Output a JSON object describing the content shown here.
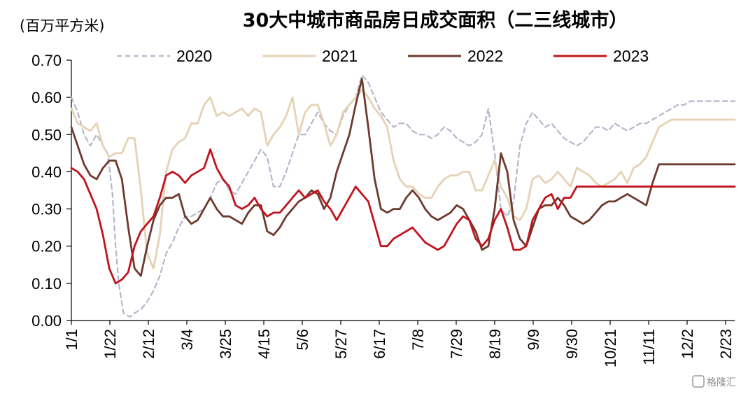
{
  "chart_data": {
    "type": "line",
    "title": "30大中城市商品房日成交面积（二三线城市）",
    "unit_label": "(百万平方米)",
    "ylim": [
      0,
      0.7
    ],
    "y_ticks": [
      "0.00",
      "0.10",
      "0.20",
      "0.30",
      "0.40",
      "0.50",
      "0.60",
      "0.70"
    ],
    "x_ticks": [
      "1/1",
      "1/22",
      "2/12",
      "3/4",
      "3/25",
      "4/15",
      "5/6",
      "5/27",
      "6/17",
      "7/8",
      "7/29",
      "8/19",
      "9/9",
      "9/30",
      "10/21",
      "11/11",
      "12/2",
      "2/23"
    ],
    "grid": false,
    "legend_position": "top",
    "series": [
      {
        "name": "2020",
        "color": "#b4b8cc",
        "dash": "7,5",
        "x": [
          0,
          4,
          8,
          12,
          16,
          20,
          23,
          26,
          28,
          30,
          33,
          37,
          40,
          44,
          48,
          52,
          56,
          60,
          64,
          68,
          72,
          76,
          80,
          84,
          88,
          92,
          96,
          100,
          104,
          108,
          112,
          116,
          120,
          124,
          128,
          132,
          136,
          140,
          144,
          148,
          152,
          156,
          160,
          164,
          168,
          172,
          176,
          180,
          184,
          188,
          192,
          196,
          200,
          204,
          208,
          212,
          216,
          220,
          224,
          228,
          232,
          236,
          240,
          244,
          248,
          252,
          256,
          260,
          264,
          268,
          272,
          276,
          280,
          284,
          288,
          292,
          296,
          300,
          304,
          308,
          312,
          316,
          320,
          324,
          328,
          332,
          336,
          340,
          344,
          348,
          352,
          356,
          360,
          364,
          368,
          372,
          376,
          380,
          384,
          388,
          392,
          396,
          400,
          404,
          408,
          412,
          416,
          420
        ],
        "y": [
          0.6,
          0.56,
          0.5,
          0.47,
          0.5,
          0.47,
          0.45,
          0.34,
          0.2,
          0.1,
          0.02,
          0.01,
          0.02,
          0.03,
          0.05,
          0.08,
          0.12,
          0.18,
          0.21,
          0.25,
          0.28,
          0.28,
          0.29,
          0.3,
          0.33,
          0.37,
          0.38,
          0.35,
          0.34,
          0.37,
          0.4,
          0.43,
          0.46,
          0.44,
          0.36,
          0.36,
          0.4,
          0.45,
          0.5,
          0.5,
          0.53,
          0.56,
          0.53,
          0.51,
          0.5,
          0.55,
          0.58,
          0.6,
          0.66,
          0.64,
          0.6,
          0.56,
          0.54,
          0.52,
          0.53,
          0.53,
          0.51,
          0.5,
          0.5,
          0.49,
          0.5,
          0.52,
          0.51,
          0.49,
          0.48,
          0.47,
          0.48,
          0.5,
          0.57,
          0.45,
          0.3,
          0.28,
          0.32,
          0.47,
          0.53,
          0.56,
          0.54,
          0.52,
          0.53,
          0.51,
          0.49,
          0.48,
          0.47,
          0.48,
          0.5,
          0.52,
          0.52,
          0.51,
          0.53,
          0.52,
          0.51,
          0.52,
          0.53,
          0.53,
          0.54,
          0.55,
          0.56,
          0.57,
          0.58,
          0.58,
          0.59,
          0.59,
          0.59,
          0.59,
          0.59,
          0.59,
          0.59,
          0.59
        ],
        "points": 85
      },
      {
        "name": "2021",
        "color": "#e6d2b4",
        "dash": "",
        "x": [
          0,
          4,
          8,
          12,
          16,
          20,
          24,
          28,
          32,
          36,
          40,
          44,
          48,
          52,
          56,
          60,
          64,
          68,
          72,
          76,
          80,
          84,
          88,
          92,
          96,
          100,
          104,
          108,
          112,
          116,
          120,
          124,
          128,
          132,
          136,
          140,
          144,
          148,
          152,
          156,
          160,
          164,
          168,
          172,
          176,
          180,
          184,
          188,
          192,
          196,
          200,
          204,
          208,
          212,
          216,
          220,
          224,
          228,
          232,
          236,
          240,
          244,
          248,
          252,
          256,
          260,
          264,
          268,
          272,
          276,
          280,
          284,
          288,
          292,
          296,
          300,
          304,
          308,
          312,
          316,
          320,
          324,
          328,
          332,
          336,
          340,
          344,
          348,
          352,
          356,
          360,
          364,
          368,
          372,
          376,
          380,
          384,
          388,
          392,
          396,
          400,
          404,
          408,
          412,
          416,
          420
        ],
        "y": [
          0.57,
          0.53,
          0.52,
          0.51,
          0.53,
          0.47,
          0.44,
          0.45,
          0.45,
          0.49,
          0.49,
          0.35,
          0.18,
          0.14,
          0.23,
          0.4,
          0.46,
          0.48,
          0.49,
          0.53,
          0.53,
          0.58,
          0.6,
          0.55,
          0.56,
          0.55,
          0.56,
          0.57,
          0.55,
          0.57,
          0.56,
          0.47,
          0.5,
          0.52,
          0.55,
          0.6,
          0.5,
          0.56,
          0.58,
          0.58,
          0.53,
          0.47,
          0.5,
          0.56,
          0.58,
          0.6,
          0.62,
          0.6,
          0.57,
          0.55,
          0.52,
          0.43,
          0.38,
          0.36,
          0.36,
          0.34,
          0.33,
          0.33,
          0.36,
          0.38,
          0.39,
          0.39,
          0.4,
          0.4,
          0.35,
          0.35,
          0.39,
          0.43,
          0.36,
          0.33,
          0.28,
          0.27,
          0.3,
          0.38,
          0.39,
          0.37,
          0.38,
          0.4,
          0.38,
          0.36,
          0.41,
          0.4,
          0.39,
          0.37,
          0.36,
          0.37,
          0.38,
          0.4,
          0.37,
          0.41,
          0.42,
          0.44,
          0.48,
          0.52,
          0.53,
          0.54,
          0.54,
          0.54,
          0.54,
          0.54,
          0.54,
          0.54,
          0.54,
          0.54,
          0.54,
          0.54
        ],
        "points": 85
      },
      {
        "name": "2022",
        "color": "#6e3a2e",
        "dash": "",
        "x": [
          0,
          4,
          8,
          12,
          16,
          20,
          24,
          28,
          32,
          36,
          40,
          44,
          48,
          52,
          56,
          60,
          64,
          68,
          72,
          76,
          80,
          84,
          88,
          92,
          96,
          100,
          104,
          108,
          112,
          116,
          120,
          124,
          128,
          132,
          136,
          140,
          144,
          148,
          152,
          156,
          160,
          164,
          168,
          172,
          176,
          180,
          184,
          188,
          192,
          196,
          200,
          204,
          208,
          212,
          216,
          220,
          224,
          228,
          232,
          236,
          240,
          244,
          248,
          252,
          256,
          260,
          264,
          268,
          272,
          276,
          280,
          284,
          288,
          292,
          296,
          300,
          304,
          308,
          312,
          316,
          320,
          324,
          328,
          332,
          336,
          340,
          344,
          348,
          352,
          356,
          360,
          364,
          368,
          372,
          376,
          380,
          384,
          388,
          392,
          396,
          400,
          404,
          408,
          412,
          416,
          420
        ],
        "y": [
          0.52,
          0.47,
          0.42,
          0.39,
          0.38,
          0.41,
          0.43,
          0.43,
          0.38,
          0.25,
          0.14,
          0.12,
          0.2,
          0.27,
          0.31,
          0.33,
          0.33,
          0.34,
          0.28,
          0.26,
          0.27,
          0.3,
          0.33,
          0.3,
          0.28,
          0.28,
          0.27,
          0.26,
          0.29,
          0.31,
          0.31,
          0.24,
          0.23,
          0.25,
          0.28,
          0.3,
          0.32,
          0.33,
          0.35,
          0.34,
          0.3,
          0.33,
          0.4,
          0.45,
          0.5,
          0.58,
          0.65,
          0.52,
          0.38,
          0.3,
          0.29,
          0.3,
          0.3,
          0.33,
          0.35,
          0.33,
          0.3,
          0.28,
          0.27,
          0.28,
          0.29,
          0.31,
          0.3,
          0.27,
          0.24,
          0.19,
          0.2,
          0.3,
          0.45,
          0.4,
          0.27,
          0.22,
          0.2,
          0.25,
          0.3,
          0.31,
          0.31,
          0.33,
          0.31,
          0.28,
          0.27,
          0.26,
          0.27,
          0.29,
          0.31,
          0.32,
          0.32,
          0.33,
          0.34,
          0.33,
          0.32,
          0.31,
          0.37,
          0.42,
          0.42,
          0.42,
          0.42,
          0.42,
          0.42,
          0.42,
          0.42,
          0.42,
          0.42,
          0.42,
          0.42,
          0.42
        ],
        "points": 85
      },
      {
        "name": "2023",
        "color": "#c0141e",
        "dash": "",
        "x": [
          0,
          4,
          8,
          12,
          16,
          20,
          24,
          28,
          32,
          36,
          40,
          44,
          48,
          52,
          56,
          60,
          64,
          68,
          72,
          76,
          80,
          84,
          88,
          92,
          96,
          100,
          104,
          108,
          112,
          116,
          120,
          124,
          128,
          132,
          136,
          140,
          144,
          148,
          152,
          156,
          160,
          164,
          168,
          172,
          176,
          180,
          184,
          188,
          192,
          196,
          200,
          204,
          208,
          212,
          216,
          220,
          224,
          228,
          232,
          236,
          240,
          244,
          248,
          252,
          256,
          260,
          264,
          268,
          272,
          276,
          280,
          284,
          288,
          292,
          296,
          300,
          304,
          308,
          312,
          316,
          320,
          324,
          328,
          332,
          336,
          340,
          344,
          348,
          352,
          356,
          360,
          364,
          368,
          372,
          376,
          380,
          384,
          388,
          392,
          396,
          400,
          404,
          408,
          412,
          416,
          420
        ],
        "y": [
          0.41,
          0.4,
          0.38,
          0.34,
          0.3,
          0.23,
          0.14,
          0.1,
          0.11,
          0.13,
          0.2,
          0.24,
          0.26,
          0.28,
          0.33,
          0.39,
          0.4,
          0.39,
          0.37,
          0.39,
          0.4,
          0.41,
          0.46,
          0.41,
          0.38,
          0.36,
          0.31,
          0.3,
          0.31,
          0.33,
          0.3,
          0.28,
          0.29,
          0.29,
          0.31,
          0.33,
          0.35,
          0.33,
          0.34,
          0.35,
          0.32,
          0.3,
          0.27,
          0.3,
          0.33,
          0.36,
          0.34,
          0.32,
          0.26,
          0.2,
          0.2,
          0.22,
          0.23,
          0.24,
          0.25,
          0.23,
          0.21,
          0.2,
          0.19,
          0.2,
          0.23,
          0.26,
          0.28,
          0.27,
          0.22,
          0.2,
          0.22,
          0.27,
          0.3,
          0.25,
          0.19,
          0.19,
          0.2,
          0.27,
          0.3,
          0.33,
          0.34,
          0.3,
          0.33,
          0.33,
          0.36,
          0.36,
          0.36,
          0.36,
          0.36,
          0.36,
          0.36,
          0.36,
          0.36,
          0.36,
          0.36,
          0.36,
          0.36,
          0.36,
          0.36,
          0.36,
          0.36,
          0.36,
          0.36,
          0.36,
          0.36,
          0.36,
          0.36,
          0.36,
          0.36,
          0.36
        ],
        "points": 85
      }
    ]
  },
  "watermark": "格隆汇"
}
